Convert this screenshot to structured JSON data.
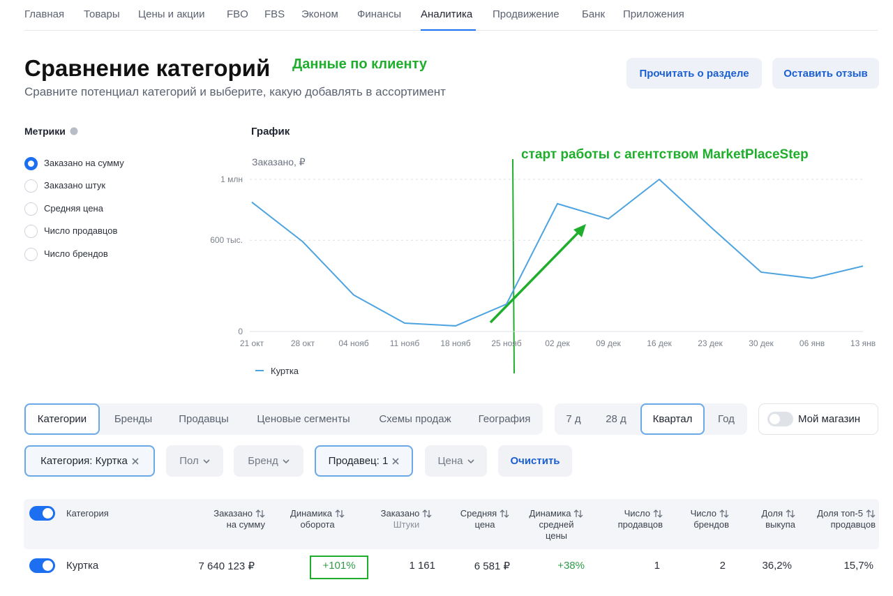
{
  "nav": {
    "tabs": [
      {
        "label": "Главная"
      },
      {
        "label": "Товары"
      },
      {
        "label": "Цены и акции"
      },
      {
        "label": "FBO"
      },
      {
        "label": "FBS"
      },
      {
        "label": "Эконом"
      },
      {
        "label": "Финансы"
      },
      {
        "label": "Аналитика",
        "active": true
      },
      {
        "label": "Продвижение"
      },
      {
        "label": "Банк"
      },
      {
        "label": "Приложения"
      }
    ]
  },
  "header": {
    "title": "Сравнение категорий",
    "note": "Данные по клиенту",
    "subtitle": "Сравните потенциал категорий и выберите, какую добавлять в ассортимент",
    "buttons": [
      "Прочитать о разделе",
      "Оставить отзыв"
    ]
  },
  "metrics": {
    "title": "Метрики",
    "options": [
      {
        "label": "Заказано на сумму",
        "selected": true
      },
      {
        "label": "Заказано штук"
      },
      {
        "label": "Средняя цена"
      },
      {
        "label": "Число продавцов"
      },
      {
        "label": "Число брендов"
      }
    ]
  },
  "chart_data": {
    "type": "line",
    "title": "График",
    "y_label": "Заказано, ₽",
    "annotation": "старт работы с агентством MarketPlaceStep",
    "categories": [
      "21 окт",
      "28 окт",
      "04 нояб",
      "11 нояб",
      "18 нояб",
      "25 нояб",
      "02 дек",
      "09 дек",
      "16 дек",
      "23 дек",
      "30 дек",
      "06 янв",
      "13 янв"
    ],
    "series": [
      {
        "name": "Куртка",
        "color": "#4da3e0",
        "values": [
          850000,
          590000,
          240000,
          55000,
          37000,
          180000,
          840000,
          740000,
          1000000,
          690000,
          390000,
          350000,
          430000
        ]
      }
    ],
    "ylim": [
      0,
      1000000
    ],
    "yticks": [
      0,
      {
        "value": 600000,
        "label": "600 тыс."
      },
      {
        "value": 1000000,
        "label": "1 млн"
      }
    ],
    "grid": true,
    "legend": "bottom-left"
  },
  "segments": {
    "tabs": [
      {
        "label": "Категории",
        "active": true
      },
      {
        "label": "Бренды"
      },
      {
        "label": "Продавцы"
      },
      {
        "label": "Ценовые сегменты"
      },
      {
        "label": "Схемы продаж"
      },
      {
        "label": "География"
      }
    ]
  },
  "periods": {
    "tabs": [
      {
        "label": "7 д"
      },
      {
        "label": "28 д"
      },
      {
        "label": "Квартал",
        "active": true
      },
      {
        "label": "Год"
      }
    ]
  },
  "my_store": {
    "label": "Мой магазин",
    "on": false
  },
  "filters": [
    {
      "label": "Категория: Куртка",
      "active": true,
      "removable": true
    },
    {
      "label": "Пол",
      "dropdown": true
    },
    {
      "label": "Бренд",
      "dropdown": true
    },
    {
      "label": "Продавец: 1",
      "active": true,
      "removable": true
    },
    {
      "label": "Цена",
      "dropdown": true
    }
  ],
  "clear": "Очистить",
  "table": {
    "header": [
      [
        "Категория"
      ],
      [
        "Заказано",
        "на сумму"
      ],
      [
        "Динамика",
        "оборота"
      ],
      [
        "Заказано",
        "Штуки"
      ],
      [
        "Средняя",
        "цена"
      ],
      [
        "Динамика",
        "средней",
        "цены"
      ],
      [
        "Число",
        "продавцов"
      ],
      [
        "Число",
        "брендов"
      ],
      [
        "Доля",
        "выкупа"
      ],
      [
        "Доля топ-5",
        "продавцов"
      ]
    ],
    "rows": [
      [
        "Куртка",
        "7 640 123 ₽",
        "+101%",
        "1 161",
        "6 581 ₽",
        "+38%",
        "1",
        "2",
        "36,2%",
        "15,7%"
      ]
    ]
  }
}
